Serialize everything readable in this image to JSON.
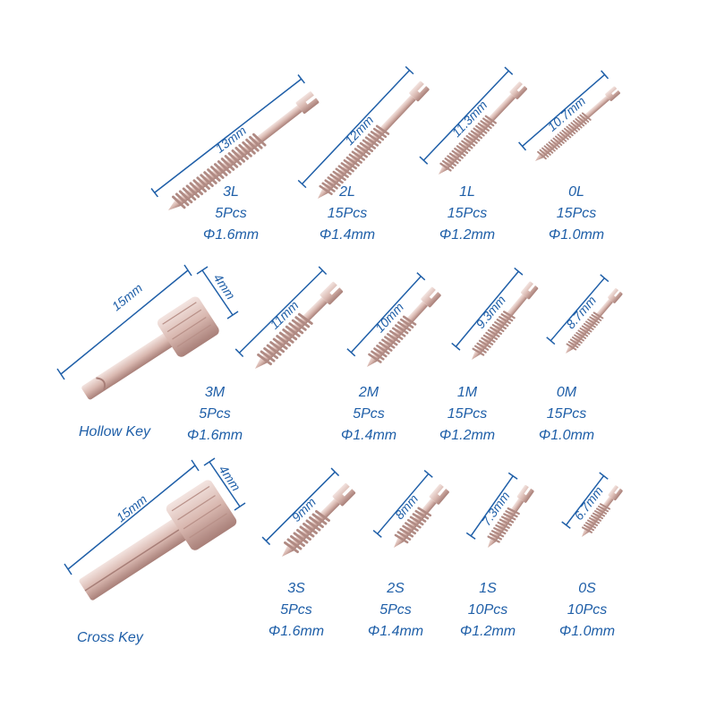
{
  "colors": {
    "text": "#1f5fa8",
    "metal": "#d9b8b0",
    "metal_dark": "#a87f78",
    "metal_light": "#f3e4e0"
  },
  "keys": [
    {
      "name": "Hollow Key",
      "length": "15mm",
      "width": "4mm"
    },
    {
      "name": "Cross Key",
      "length": "15mm",
      "width": "4mm"
    }
  ],
  "screws": [
    {
      "size": "3L",
      "qty": "5Pcs",
      "diameter": "Φ1.6mm",
      "length": "13mm"
    },
    {
      "size": "2L",
      "qty": "15Pcs",
      "diameter": "Φ1.4mm",
      "length": "12mm"
    },
    {
      "size": "1L",
      "qty": "15Pcs",
      "diameter": "Φ1.2mm",
      "length": "11.3mm"
    },
    {
      "size": "0L",
      "qty": "15Pcs",
      "diameter": "Φ1.0mm",
      "length": "10.7mm"
    },
    {
      "size": "3M",
      "qty": "5Pcs",
      "diameter": "Φ1.6mm",
      "length": "11mm"
    },
    {
      "size": "2M",
      "qty": "5Pcs",
      "diameter": "Φ1.4mm",
      "length": "10mm"
    },
    {
      "size": "1M",
      "qty": "15Pcs",
      "diameter": "Φ1.2mm",
      "length": "9.3mm"
    },
    {
      "size": "0M",
      "qty": "15Pcs",
      "diameter": "Φ1.0mm",
      "length": "8.7mm"
    },
    {
      "size": "3S",
      "qty": "5Pcs",
      "diameter": "Φ1.6mm",
      "length": "9mm"
    },
    {
      "size": "2S",
      "qty": "5Pcs",
      "diameter": "Φ1.4mm",
      "length": "8mm"
    },
    {
      "size": "1S",
      "qty": "10Pcs",
      "diameter": "Φ1.2mm",
      "length": "7.3mm"
    },
    {
      "size": "0S",
      "qty": "10Pcs",
      "diameter": "Φ1.0mm",
      "length": "6.7mm"
    }
  ]
}
